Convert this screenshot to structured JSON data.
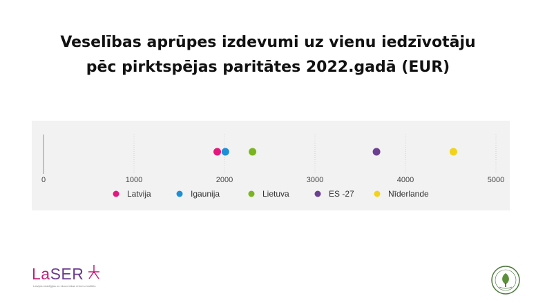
{
  "title": {
    "line1": "Veselības aprūpes izdevumi uz vienu iedzīvotāju",
    "line2": "pēc pirktspējas paritātes 2022.gadā (EUR)"
  },
  "chart_data": {
    "type": "scatter",
    "title": "Veselības aprūpes izdevumi uz vienu iedzīvotāju pēc pirktspējas paritātes 2022.gadā (EUR)",
    "xlim": [
      0,
      5000
    ],
    "x_ticks": [
      "0",
      "1000",
      "2000",
      "3000",
      "4000",
      "5000"
    ],
    "x_tick_values": [
      0,
      1000,
      2000,
      3000,
      4000,
      5000
    ],
    "grid": true,
    "legend_position": "bottom",
    "series": [
      {
        "name": "Latvija",
        "x": 1920,
        "color": "#e3177e"
      },
      {
        "name": "Igaunija",
        "x": 2010,
        "color": "#1c8fd6"
      },
      {
        "name": "Lietuva",
        "x": 2310,
        "color": "#7ab51d"
      },
      {
        "name": "ES -27",
        "x": 3680,
        "color": "#6b3f92"
      },
      {
        "name": "Nīderlande",
        "x": 4530,
        "color": "#f2d319"
      }
    ]
  },
  "logos": {
    "laser_text_la": "La",
    "laser_text_ser": "SER",
    "laser_tagline": "Latvijas stratēģijas un ekonomikas reformu institūts",
    "badge_top": "LATVIJAS",
    "badge_bottom": "labums"
  },
  "colors": {
    "panel_bg": "#f2f2f2",
    "grid": "#d0d0d0",
    "laser_magenta": "#c21c7a",
    "laser_purple": "#6a3a8e"
  }
}
